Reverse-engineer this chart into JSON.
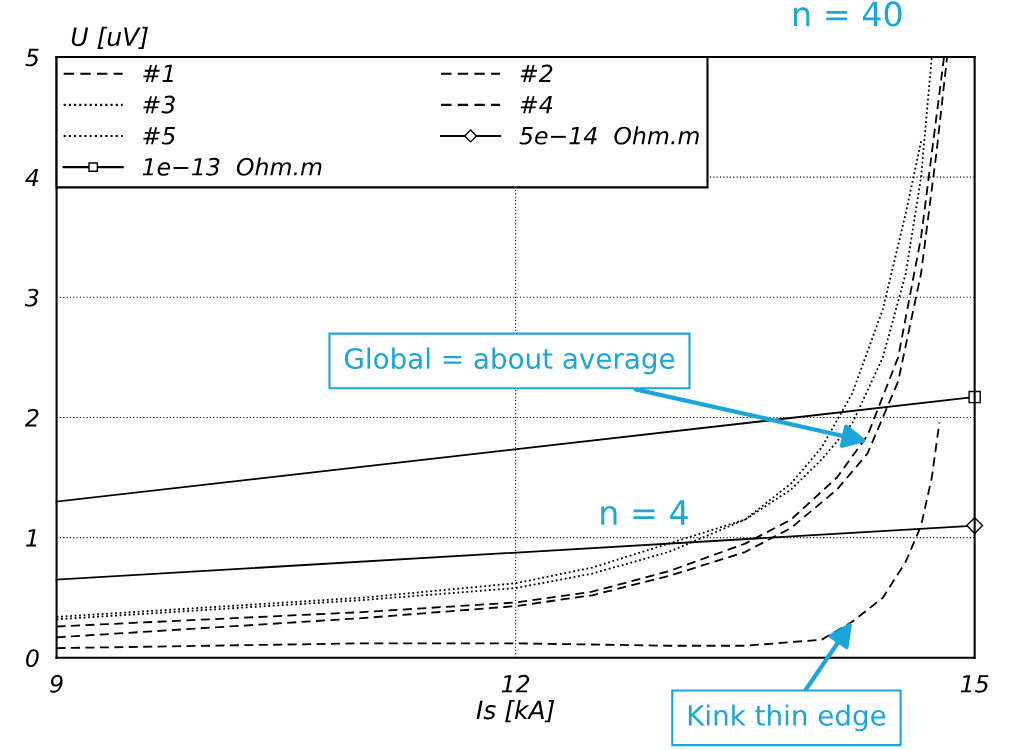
{
  "chart_data": {
    "type": "line",
    "xlabel": "Is [kA]",
    "ylabel": "U [uV]",
    "xlim": [
      9,
      15
    ],
    "ylim": [
      0,
      5
    ],
    "xticks": [
      9,
      12,
      15
    ],
    "yticks": [
      0,
      1,
      2,
      3,
      4,
      5
    ],
    "grid": true,
    "legend": "top left",
    "series": [
      {
        "name": "#1",
        "color": "#000000",
        "line_style": "dashed",
        "x": [
          9,
          10,
          11,
          12,
          12.5,
          13,
          13.5,
          13.8,
          14.1,
          14.3,
          14.5,
          14.65,
          14.75,
          14.8
        ],
        "values": [
          0.26,
          0.32,
          0.38,
          0.46,
          0.55,
          0.72,
          0.95,
          1.15,
          1.5,
          1.85,
          2.5,
          3.5,
          4.5,
          5.0
        ]
      },
      {
        "name": "#2",
        "color": "#000000",
        "line_style": "dashed",
        "x": [
          9,
          10,
          11,
          12,
          12.5,
          13,
          13.5,
          13.8,
          14.1,
          14.3,
          14.5,
          14.65,
          14.75,
          14.82
        ],
        "values": [
          0.17,
          0.25,
          0.33,
          0.43,
          0.52,
          0.68,
          0.88,
          1.08,
          1.4,
          1.7,
          2.3,
          3.2,
          4.2,
          5.0
        ]
      },
      {
        "name": "#3",
        "color": "#000000",
        "line_style": "dotted",
        "x": [
          9,
          10,
          11,
          12,
          12.5,
          13,
          13.5,
          13.8,
          14.0,
          14.2,
          14.4,
          14.55,
          14.65
        ],
        "values": [
          0.32,
          0.4,
          0.48,
          0.58,
          0.7,
          0.88,
          1.15,
          1.45,
          1.75,
          2.2,
          2.9,
          3.7,
          4.3
        ]
      },
      {
        "name": "#4",
        "color": "#000000",
        "line_style": "dashed",
        "x": [
          9,
          10,
          11,
          12,
          13,
          13.5,
          14,
          14.2,
          14.4,
          14.55,
          14.65,
          14.72,
          14.77
        ],
        "values": [
          0.08,
          0.1,
          0.12,
          0.12,
          0.1,
          0.1,
          0.15,
          0.3,
          0.5,
          0.8,
          1.1,
          1.5,
          1.96
        ]
      },
      {
        "name": "#5",
        "color": "#000000",
        "line_style": "dotted",
        "x": [
          9,
          10,
          11,
          12,
          12.5,
          13,
          13.5,
          13.8,
          14.0,
          14.2,
          14.4,
          14.55,
          14.65,
          14.72
        ],
        "values": [
          0.34,
          0.42,
          0.5,
          0.62,
          0.75,
          0.95,
          1.15,
          1.4,
          1.65,
          1.95,
          2.5,
          3.2,
          4.0,
          5.0
        ]
      },
      {
        "name": "5e−14  Ohm.m",
        "color": "#000000",
        "line_style": "solid",
        "marker": "diamond",
        "x": [
          9,
          15
        ],
        "values": [
          0.65,
          1.1
        ]
      },
      {
        "name": "1e−13  Ohm.m",
        "color": "#000000",
        "line_style": "solid",
        "marker": "square",
        "x": [
          9,
          15
        ],
        "values": [
          1.3,
          2.17
        ]
      }
    ],
    "annotations": [
      "n = 40",
      "n = 4",
      {
        "text": "Global = about average",
        "x": 14.3,
        "y": 1.8
      },
      {
        "text": "Kink thin edge",
        "x": 14.2,
        "y": 0.3
      }
    ]
  }
}
